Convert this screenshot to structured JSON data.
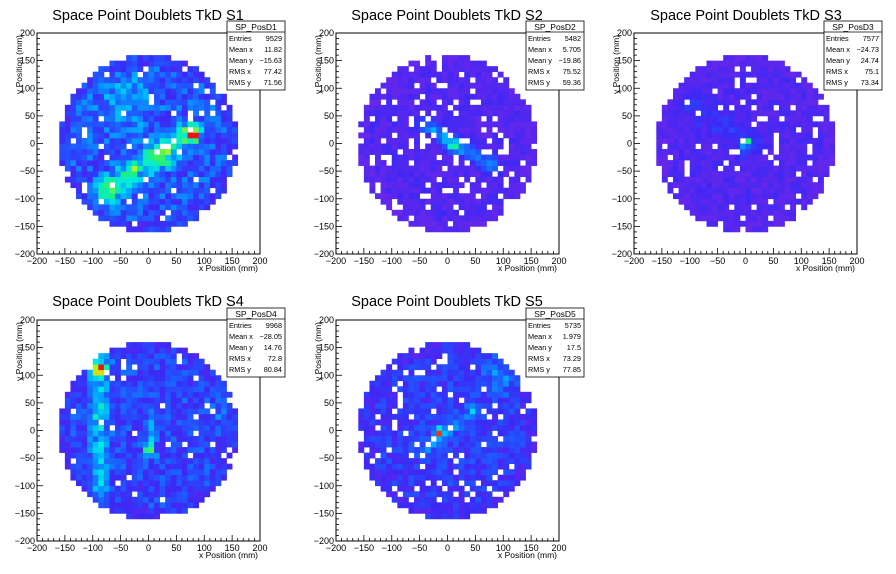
{
  "chart_data": [
    {
      "type": "heatmap",
      "title": "Space Point Doublets TkD S1",
      "xlabel": "x Position (mm)",
      "ylabel": "y Position (mm)",
      "xlim": [
        -200,
        200
      ],
      "ylim": [
        -200,
        200
      ],
      "x_ticks": [
        "−200",
        "−150",
        "−100",
        "−50",
        "0",
        "50",
        "100",
        "150",
        "200"
      ],
      "y_ticks": [
        "200",
        "150",
        "100",
        "50",
        "0",
        "−50",
        "−100",
        "−150",
        "−200"
      ],
      "stats": {
        "name": "SP_PosD1",
        "rows": [
          {
            "label": "Entries",
            "value": "9529"
          },
          {
            "label": "Mean x",
            "value": "11.82"
          },
          {
            "label": "Mean y",
            "value": "−15.63"
          },
          {
            "label": "RMS x",
            "value": "77.42"
          },
          {
            "label": "RMS y",
            "value": "71.56"
          }
        ]
      },
      "distribution": {
        "radius": 160,
        "background": 0.28,
        "bands": [
          {
            "x1": -80,
            "y1": -90,
            "x2": 75,
            "y2": 20,
            "width": 16,
            "amp": 0.35
          }
        ],
        "hotspots": [
          {
            "x": 78,
            "y": 15,
            "sigma": 7,
            "amp": 0.7
          },
          {
            "x": 25,
            "y": -20,
            "sigma": 14,
            "amp": 0.2
          },
          {
            "x": -40,
            "y": 75,
            "sigma": 35,
            "amp": 0.15
          }
        ],
        "holes": 0.06,
        "seed": 11
      }
    },
    {
      "type": "heatmap",
      "title": "Space Point Doublets TkD S2",
      "xlabel": "x Position (mm)",
      "ylabel": "y Position (mm)",
      "xlim": [
        -200,
        200
      ],
      "ylim": [
        -200,
        200
      ],
      "x_ticks": [
        "−200",
        "−150",
        "−100",
        "−50",
        "0",
        "50",
        "100",
        "150",
        "200"
      ],
      "y_ticks": [
        "200",
        "150",
        "100",
        "50",
        "0",
        "−50",
        "−100",
        "−150",
        "−200"
      ],
      "stats": {
        "name": "SP_PosD2",
        "rows": [
          {
            "label": "Entries",
            "value": "5482"
          },
          {
            "label": "Mean x",
            "value": "5.705"
          },
          {
            "label": "Mean y",
            "value": "−19.86"
          },
          {
            "label": "RMS x",
            "value": "75.52"
          },
          {
            "label": "RMS y",
            "value": "59.36"
          }
        ]
      },
      "distribution": {
        "radius": 160,
        "background": 0.12,
        "bands": [
          {
            "x1": -40,
            "y1": 35,
            "x2": 80,
            "y2": -40,
            "width": 10,
            "amp": 0.3
          }
        ],
        "hotspots": [
          {
            "x": 8,
            "y": -5,
            "sigma": 8,
            "amp": 0.3
          }
        ],
        "holes": 0.12,
        "seed": 22
      }
    },
    {
      "type": "heatmap",
      "title": "Space Point Doublets TkD S3",
      "xlabel": "x Position (mm)",
      "ylabel": "y Position (mm)",
      "xlim": [
        -200,
        200
      ],
      "ylim": [
        -200,
        200
      ],
      "x_ticks": [
        "−200",
        "−150",
        "−100",
        "−50",
        "0",
        "50",
        "100",
        "150",
        "200"
      ],
      "y_ticks": [
        "200",
        "150",
        "100",
        "50",
        "0",
        "−50",
        "−100",
        "−150",
        "−200"
      ],
      "stats": {
        "name": "SP_PosD3",
        "rows": [
          {
            "label": "Entries",
            "value": "7577"
          },
          {
            "label": "Mean x",
            "value": "−24.73"
          },
          {
            "label": "Mean y",
            "value": "24.74"
          },
          {
            "label": "RMS x",
            "value": "75.1"
          },
          {
            "label": "RMS y",
            "value": "73.34"
          }
        ]
      },
      "distribution": {
        "radius": 160,
        "background": 0.12,
        "bands": [
          {
            "x1": -110,
            "y1": 75,
            "x2": 10,
            "y2": 0,
            "width": 16,
            "amp": 0.1
          }
        ],
        "hotspots": [
          {
            "x": 0,
            "y": 2,
            "sigma": 5,
            "amp": 0.8
          },
          {
            "x": -10,
            "y": -15,
            "sigma": 6,
            "amp": 0.15
          }
        ],
        "holes": 0.08,
        "seed": 33
      }
    },
    {
      "type": "heatmap",
      "title": "Space Point Doublets TkD S4",
      "xlabel": "x Position (mm)",
      "ylabel": "y Position (mm)",
      "xlim": [
        -200,
        200
      ],
      "ylim": [
        -200,
        200
      ],
      "x_ticks": [
        "−200",
        "−150",
        "−100",
        "−50",
        "0",
        "50",
        "100",
        "150",
        "200"
      ],
      "y_ticks": [
        "200",
        "150",
        "100",
        "50",
        "0",
        "−50",
        "−100",
        "−150",
        "−200"
      ],
      "stats": {
        "name": "SP_PosD4",
        "rows": [
          {
            "label": "Entries",
            "value": "9968"
          },
          {
            "label": "Mean x",
            "value": "−28.05"
          },
          {
            "label": "Mean y",
            "value": "14.76"
          },
          {
            "label": "RMS x",
            "value": "72.8"
          },
          {
            "label": "RMS y",
            "value": "80.84"
          }
        ]
      },
      "distribution": {
        "radius": 160,
        "background": 0.25,
        "bands": [
          {
            "x1": -88,
            "y1": 135,
            "x2": -88,
            "y2": -110,
            "width": 12,
            "amp": 0.25
          },
          {
            "x1": 5,
            "y1": 30,
            "x2": 5,
            "y2": -40,
            "width": 6,
            "amp": 0.25
          }
        ],
        "hotspots": [
          {
            "x": -88,
            "y": 110,
            "sigma": 10,
            "amp": 0.55
          },
          {
            "x": 0,
            "y": -35,
            "sigma": 5,
            "amp": 0.5
          },
          {
            "x": 140,
            "y": 40,
            "sigma": 20,
            "amp": 0.1
          }
        ],
        "holes": 0.05,
        "seed": 44
      }
    },
    {
      "type": "heatmap",
      "title": "Space Point Doublets TkD S5",
      "xlabel": "x Position (mm)",
      "ylabel": "y Position (mm)",
      "xlim": [
        -200,
        200
      ],
      "ylim": [
        -200,
        200
      ],
      "x_ticks": [
        "−200",
        "−150",
        "−100",
        "−50",
        "0",
        "50",
        "100",
        "150",
        "200"
      ],
      "y_ticks": [
        "200",
        "150",
        "100",
        "50",
        "0",
        "−50",
        "−100",
        "−150",
        "−200"
      ],
      "stats": {
        "name": "SP_PosD5",
        "rows": [
          {
            "label": "Entries",
            "value": "5735"
          },
          {
            "label": "Mean x",
            "value": "1.979"
          },
          {
            "label": "Mean y",
            "value": "17.5"
          },
          {
            "label": "RMS x",
            "value": "73.29"
          },
          {
            "label": "RMS y",
            "value": "77.85"
          }
        ]
      },
      "distribution": {
        "radius": 160,
        "background": 0.22,
        "bands": [
          {
            "x1": -40,
            "y1": -30,
            "x2": 50,
            "y2": 40,
            "width": 8,
            "amp": 0.2
          }
        ],
        "hotspots": [
          {
            "x": -15,
            "y": -5,
            "sigma": 6,
            "amp": 0.65
          },
          {
            "x": 100,
            "y": 110,
            "sigma": 30,
            "amp": 0.15
          }
        ],
        "holes": 0.1,
        "seed": 55
      }
    }
  ]
}
